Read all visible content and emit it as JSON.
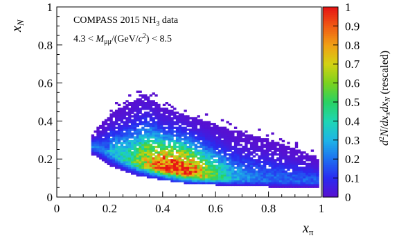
{
  "chart_data": {
    "type": "heatmap",
    "annotation": {
      "line1_a": "COMPASS 2015 NH",
      "line1_sub": "3",
      "line1_b": " data",
      "line2": "4.3 < M_{μμ}/(GeV/c²) < 8.5"
    },
    "xlabel": "x_π",
    "ylabel": "x_N",
    "zlabel": "d²N/dx_π dx_N  (rescaled)",
    "xlim": [
      0,
      1
    ],
    "ylim": [
      0,
      1
    ],
    "zlim": [
      0,
      1
    ],
    "x_ticks": [
      "0",
      "0.2",
      "0.4",
      "0.6",
      "0.8",
      "1"
    ],
    "y_ticks": [
      "0",
      "0.2",
      "0.4",
      "0.6",
      "0.8",
      "1"
    ],
    "z_ticks": [
      "0",
      "0.1",
      "0.2",
      "0.3",
      "0.4",
      "0.5",
      "0.6",
      "0.7",
      "0.8",
      "0.9",
      "1"
    ],
    "colorscale": [
      "#5a0fcf",
      "#2a2af0",
      "#1e6ef0",
      "#1eb4e6",
      "#1ed6b4",
      "#28d264",
      "#7ad21e",
      "#d2d214",
      "#f0a014",
      "#f05a14",
      "#e61414"
    ],
    "distribution": {
      "x_range": [
        0.13,
        0.99
      ],
      "peak": {
        "x": 0.45,
        "y": 0.15
      },
      "ridge": [
        [
          0.15,
          0.27
        ],
        [
          0.25,
          0.2
        ],
        [
          0.35,
          0.16
        ],
        [
          0.45,
          0.14
        ],
        [
          0.55,
          0.11
        ],
        [
          0.65,
          0.09
        ],
        [
          0.75,
          0.085
        ],
        [
          0.85,
          0.08
        ],
        [
          0.95,
          0.075
        ]
      ],
      "upper_edge": [
        [
          0.13,
          0.33
        ],
        [
          0.2,
          0.44
        ],
        [
          0.28,
          0.5
        ],
        [
          0.33,
          0.54
        ],
        [
          0.4,
          0.46
        ],
        [
          0.5,
          0.42
        ],
        [
          0.6,
          0.38
        ],
        [
          0.7,
          0.33
        ],
        [
          0.8,
          0.3
        ],
        [
          0.9,
          0.25
        ],
        [
          0.99,
          0.2
        ]
      ],
      "lower_edge": [
        [
          0.13,
          0.22
        ],
        [
          0.2,
          0.16
        ],
        [
          0.3,
          0.11
        ],
        [
          0.4,
          0.085
        ],
        [
          0.5,
          0.065
        ],
        [
          0.6,
          0.06
        ],
        [
          0.7,
          0.055
        ],
        [
          0.8,
          0.05
        ],
        [
          0.9,
          0.05
        ],
        [
          0.99,
          0.05
        ]
      ]
    }
  }
}
